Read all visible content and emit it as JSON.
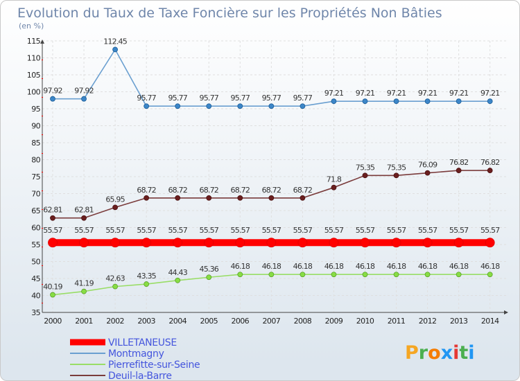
{
  "chart_data": {
    "type": "line",
    "title": "Evolution du Taux de Taxe Foncière sur les Propriétés Non Bâties",
    "ylabel": "(en %)",
    "xlabel": "",
    "ylim": [
      35,
      115
    ],
    "yticks": [
      35,
      40,
      45,
      50,
      55,
      60,
      65,
      70,
      75,
      80,
      85,
      90,
      95,
      100,
      105,
      110,
      115
    ],
    "categories": [
      "2000",
      "2001",
      "2002",
      "2003",
      "2004",
      "2005",
      "2006",
      "2007",
      "2008",
      "2009",
      "2010",
      "2011",
      "2012",
      "2013",
      "2014"
    ],
    "series": [
      {
        "name": "VILLETANEUSE",
        "color": "#ff0000",
        "values": [
          55.57,
          55.57,
          55.57,
          55.57,
          55.57,
          55.57,
          55.57,
          55.57,
          55.57,
          55.57,
          55.57,
          55.57,
          55.57,
          55.57,
          55.57
        ],
        "labels": [
          "55.57",
          "55.57",
          "55.57",
          "55.57",
          "55.57",
          "55.57",
          "55.57",
          "55.57",
          "55.57",
          "55.57",
          "55.57",
          "55.57",
          "55.57",
          "55.57",
          "55.57"
        ]
      },
      {
        "name": "Montmagny",
        "color": "#6a9fd0",
        "values": [
          97.92,
          97.92,
          112.45,
          95.77,
          95.77,
          95.77,
          95.77,
          95.77,
          95.77,
          97.21,
          97.21,
          97.21,
          97.21,
          97.21,
          97.21
        ],
        "labels": [
          "97.92",
          "97.92",
          "112.45",
          "95.77",
          "95.77",
          "95.77",
          "95.77",
          "95.77",
          "95.77",
          "97.21",
          "97.21",
          "97.21",
          "97.21",
          "97.21",
          "97.21"
        ]
      },
      {
        "name": "Pierrefitte-sur-Seine",
        "color": "#99dd66",
        "values": [
          40.19,
          41.19,
          42.63,
          43.35,
          44.43,
          45.36,
          46.18,
          46.18,
          46.18,
          46.18,
          46.18,
          46.18,
          46.18,
          46.18,
          46.18
        ],
        "labels": [
          "40.19",
          "41.19",
          "42.63",
          "43.35",
          "44.43",
          "45.36",
          "46.18",
          "46.18",
          "46.18",
          "46.18",
          "46.18",
          "46.18",
          "46.18",
          "46.18",
          "46.18"
        ]
      },
      {
        "name": "Deuil-la-Barre",
        "color": "#7a3b3b",
        "values": [
          62.81,
          62.81,
          65.95,
          68.72,
          68.72,
          68.72,
          68.72,
          68.72,
          68.72,
          71.8,
          75.35,
          75.35,
          76.09,
          76.82,
          76.82
        ],
        "labels": [
          "62.81",
          "62.81",
          "65.95",
          "68.72",
          "68.72",
          "68.72",
          "68.72",
          "68.72",
          "68.72",
          "71.8",
          "75.35",
          "75.35",
          "76.09",
          "76.82",
          "76.82"
        ]
      }
    ],
    "legend_position": "bottom-left",
    "grid": true
  },
  "logo": {
    "text": "Proxiti",
    "letters": [
      "P",
      "r",
      "o",
      "x",
      "i",
      "t",
      "i"
    ],
    "letter_colors": [
      "#f5a623",
      "#4caf50",
      "#f57c00",
      "#2196f3",
      "#e53935",
      "#4caf50",
      "#2196f3"
    ]
  }
}
